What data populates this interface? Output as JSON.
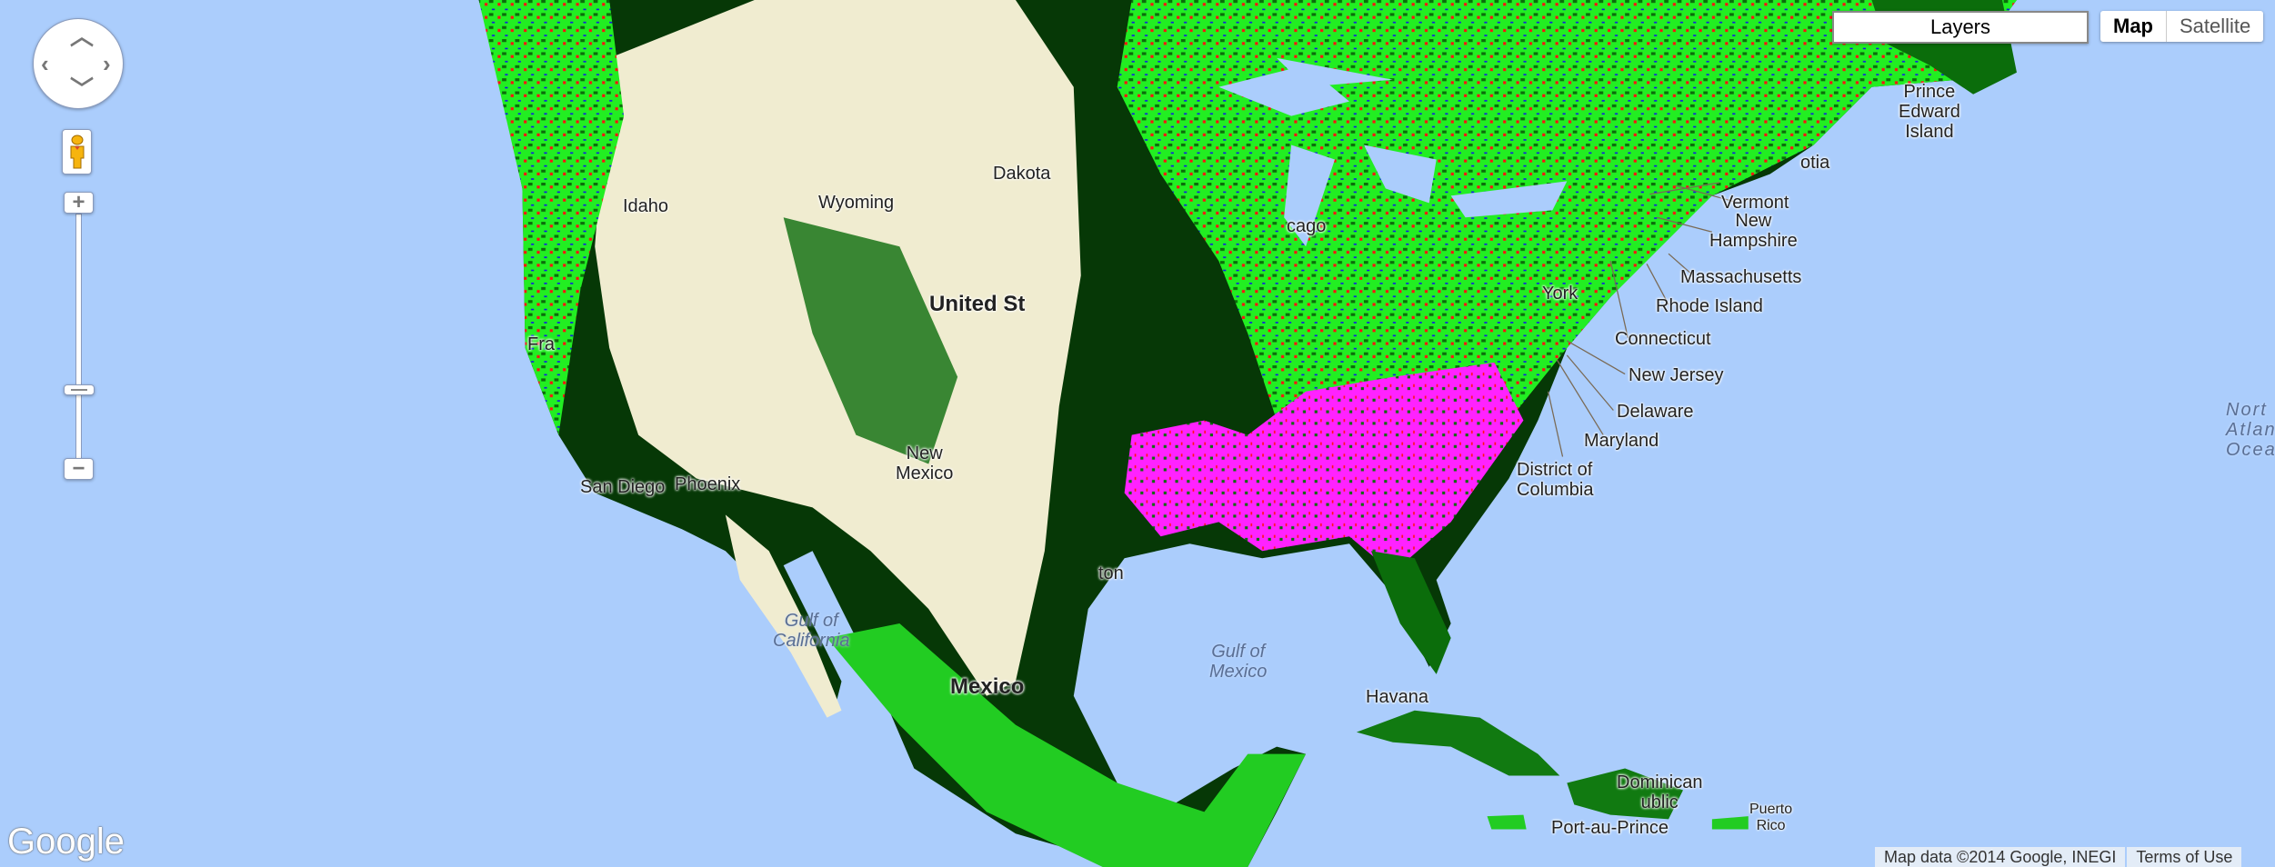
{
  "colors": {
    "water": "#abcdfc",
    "desert": "#f0ecd0",
    "forest_bright": "#22ee22",
    "forest_dark": "#0b4d0b",
    "forest_black": "#031a03",
    "magenta": "#ff22ff",
    "red": "#ff1111"
  },
  "controls": {
    "pan_icon": "pan-arrows-icon",
    "pegman_icon": "pegman-icon",
    "zoom_in": "+",
    "zoom_out": "−",
    "zoom_level_fraction": 0.27
  },
  "layers_button": "Layers",
  "map_type": {
    "map": "Map",
    "satellite": "Satellite",
    "selected": "Map"
  },
  "attribution": {
    "map_data": "Map data ©2014 Google, INEGI",
    "terms": "Terms of Use"
  },
  "logo": "Google",
  "labels": {
    "pei": [
      "Prince",
      "Edward",
      "Island"
    ],
    "nova_scotia": "otia",
    "vermont": "Vermont",
    "new_hampshire": [
      "New",
      "Hampshire"
    ],
    "massachusetts": "Massachusetts",
    "rhode_island": "Rhode Island",
    "connecticut": "Connecticut",
    "new_jersey": "New Jersey",
    "delaware": "Delaware",
    "maryland": "Maryland",
    "dc": [
      "District of",
      "Columbia"
    ],
    "york": "York",
    "atlantic": [
      "Nort",
      "Atlan",
      "Ocea"
    ],
    "san_diego": "San Diego",
    "gulf_california": [
      "Gulf of",
      "California"
    ],
    "gulf_mexico": [
      "Gulf of",
      "Mexico"
    ],
    "havana": "Havana",
    "port_au_prince": "Port-au-Prince",
    "dominican": [
      "Dominican",
      "ublic"
    ],
    "puerto_rico": [
      "Puerto",
      "Rico"
    ],
    "united_states": "United St",
    "fra": "Fra",
    "houston": "ton",
    "new_mexico": [
      "New",
      "Mexico"
    ],
    "phoenix": "Phoenix",
    "idaho": "Idaho",
    "wyoming": "Wyoming",
    "dakota": "Dakota",
    "chicago": "cago",
    "mexico": "Mexico"
  }
}
